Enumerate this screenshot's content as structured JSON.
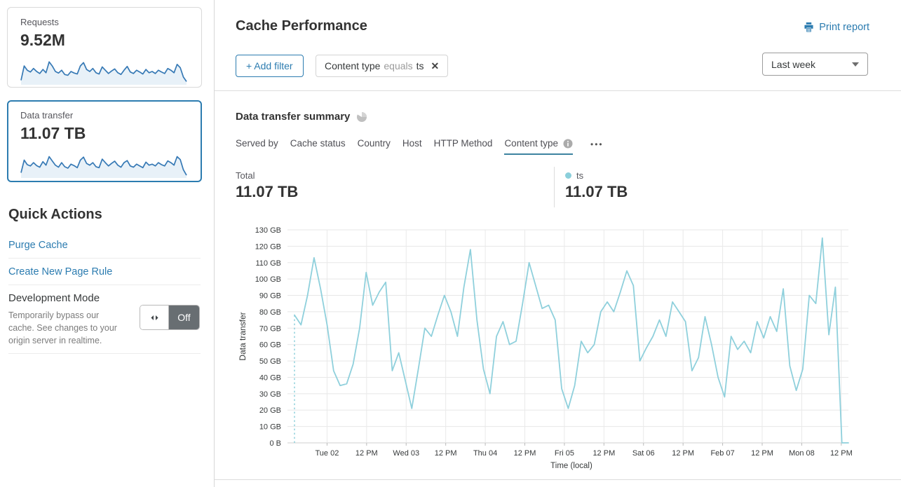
{
  "sidebar": {
    "requests_card": {
      "label": "Requests",
      "value": "9.52M",
      "spark": [
        15,
        72,
        55,
        48,
        62,
        50,
        42,
        58,
        45,
        88,
        72,
        50,
        44,
        55,
        38,
        35,
        50,
        44,
        40,
        72,
        85,
        58,
        50,
        62,
        45,
        40,
        68,
        55,
        42,
        52,
        60,
        45,
        38,
        55,
        70,
        48,
        42,
        55,
        48,
        40,
        58,
        45,
        50,
        42,
        55,
        48,
        42,
        62,
        55,
        45,
        78,
        65,
        28,
        10
      ]
    },
    "data_transfer_card": {
      "label": "Data transfer",
      "value": "11.07 TB",
      "spark": [
        18,
        68,
        50,
        45,
        58,
        46,
        40,
        62,
        48,
        82,
        65,
        48,
        40,
        58,
        42,
        36,
        52,
        46,
        38,
        68,
        80,
        55,
        48,
        58,
        42,
        38,
        72,
        58,
        45,
        55,
        64,
        48,
        40,
        58,
        66,
        45,
        40,
        52,
        45,
        38,
        60,
        48,
        52,
        45,
        58,
        50,
        45,
        65,
        58,
        48,
        82,
        70,
        30,
        8
      ]
    },
    "quick_actions": {
      "title": "Quick Actions",
      "links": [
        "Purge Cache",
        "Create New Page Rule"
      ],
      "development_mode": {
        "title": "Development Mode",
        "description": "Temporarily bypass our cache. See changes to your origin server in realtime.",
        "toggle_state": "Off"
      }
    }
  },
  "header": {
    "title": "Cache Performance",
    "print_report": "Print report"
  },
  "filters": {
    "add_filter_label": "+ Add filter",
    "chip": {
      "field": "Content type",
      "operator": "equals",
      "value": "ts"
    },
    "time_range": "Last week"
  },
  "summary": {
    "title": "Data transfer summary",
    "tabs": [
      {
        "label": "Served by"
      },
      {
        "label": "Cache status"
      },
      {
        "label": "Country"
      },
      {
        "label": "Host"
      },
      {
        "label": "HTTP Method"
      },
      {
        "label": "Content type",
        "active": true
      }
    ],
    "more_label": "•••",
    "total_label": "Total",
    "total_value": "11.07 TB",
    "series_label": "ts",
    "series_value": "11.07 TB"
  },
  "chart_data": {
    "type": "line",
    "title": "Data transfer summary",
    "xlabel": "Time (local)",
    "ylabel": "Data transfer",
    "unit": "GB",
    "ylim": [
      0,
      130
    ],
    "grid": true,
    "y_ticks": [
      "0 B",
      "10 GB",
      "20 GB",
      "30 GB",
      "40 GB",
      "50 GB",
      "60 GB",
      "70 GB",
      "80 GB",
      "90 GB",
      "100 GB",
      "110 GB",
      "120 GB",
      "130 GB"
    ],
    "x_ticks": [
      "Tue 02",
      "12 PM",
      "Wed 03",
      "12 PM",
      "Thu 04",
      "12 PM",
      "Fri 05",
      "12 PM",
      "Sat 06",
      "12 PM",
      "Feb 07",
      "12 PM",
      "Mon 08",
      "12 PM"
    ],
    "series": [
      {
        "name": "ts",
        "color": "#8fd0dc",
        "values": [
          78,
          72,
          90,
          113,
          94,
          72,
          44,
          35,
          36,
          48,
          70,
          104,
          84,
          92,
          98,
          44,
          55,
          38,
          21,
          45,
          70,
          65,
          78,
          90,
          80,
          65,
          95,
          118,
          75,
          45,
          30,
          65,
          74,
          60,
          62,
          85,
          110,
          96,
          82,
          84,
          75,
          33,
          21,
          35,
          62,
          55,
          60,
          80,
          86,
          80,
          92,
          105,
          96,
          50,
          58,
          65,
          75,
          65,
          86,
          80,
          74,
          44,
          52,
          77,
          60,
          40,
          28,
          65,
          57,
          62,
          55,
          74,
          64,
          77,
          68,
          94,
          47,
          32,
          45,
          90,
          85,
          125,
          66,
          95,
          0,
          0
        ]
      }
    ]
  },
  "colors": {
    "accent_blue": "#2c7cb0",
    "series_light_blue": "#8fd0dc",
    "spark_stroke": "#3679b5",
    "spark_fill": "#e8f1f8",
    "active_tab_underline": "#3d83a0"
  }
}
